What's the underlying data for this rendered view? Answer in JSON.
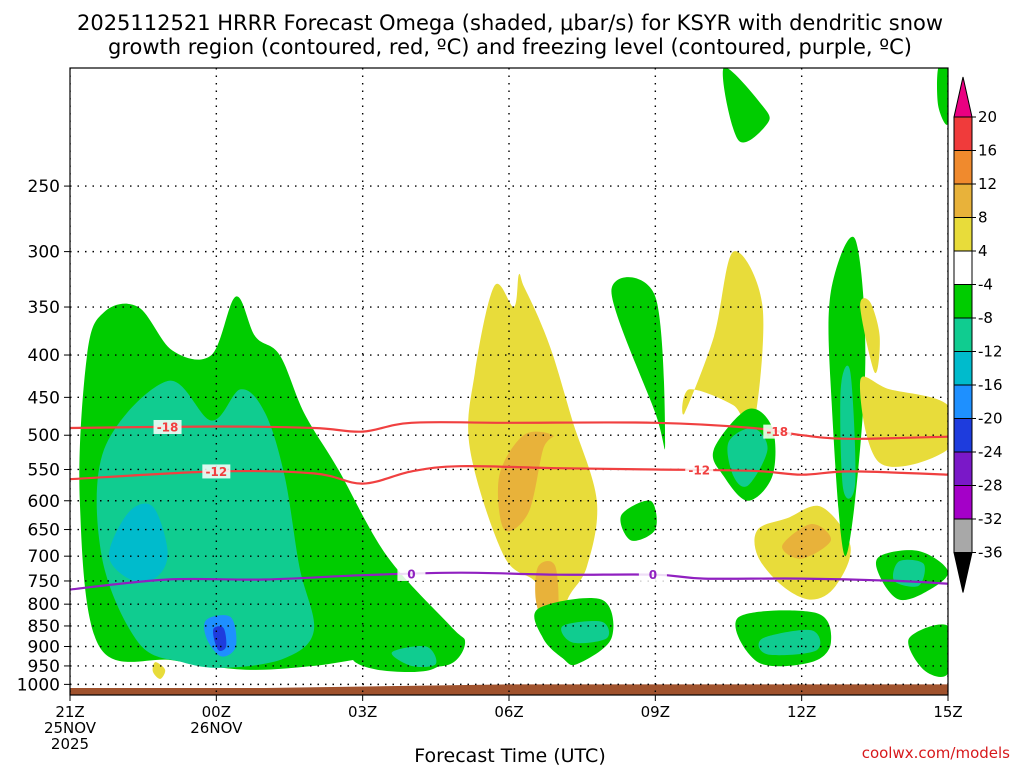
{
  "title_lines": [
    "2025112521 HRRR Forecast Omega (shaded, μbar/s) for KSYR with dendritic snow",
    "growth region (contoured, red, ºC) and freezing level (contoured, purple, ºC)"
  ],
  "credit": "coolwx.com/models",
  "chart_data": {
    "type": "heatmap",
    "title": "2025112521 HRRR Forecast Omega (shaded, μbar/s) for KSYR with dendritic snow growth region (contoured, red, ºC) and freezing level (contoured, purple, ºC)",
    "xlabel": "Forecast Time (UTC)",
    "ylabel": "",
    "x_range_hours": [
      0,
      18
    ],
    "y_range_hPa": [
      1030,
      180
    ],
    "y_scale": "log-pressure",
    "grid": true,
    "x_ticks": [
      {
        "hour": 0,
        "lines": [
          "21Z",
          "25NOV",
          "2025"
        ]
      },
      {
        "hour": 3,
        "lines": [
          "00Z",
          "26NOV"
        ]
      },
      {
        "hour": 6,
        "lines": [
          "03Z"
        ]
      },
      {
        "hour": 9,
        "lines": [
          "06Z"
        ]
      },
      {
        "hour": 12,
        "lines": [
          "09Z"
        ]
      },
      {
        "hour": 15,
        "lines": [
          "12Z"
        ]
      },
      {
        "hour": 18,
        "lines": [
          "15Z"
        ]
      }
    ],
    "y_ticks": [
      "250",
      "300",
      "350",
      "400",
      "450",
      "500",
      "550",
      "600",
      "650",
      "700",
      "750",
      "800",
      "850",
      "900",
      "950",
      "1000"
    ],
    "colorbar": {
      "labels": [
        "20",
        "16",
        "12",
        "8",
        "4",
        "-4",
        "-8",
        "-12",
        "-16",
        "-20",
        "-24",
        "-28",
        "-32",
        "-36"
      ],
      "colors": [
        "#ea0081",
        "#f03b3b",
        "#f08a2d",
        "#e8b23a",
        "#e8dc3a",
        "#ffffff",
        "#00cc00",
        "#10cc90",
        "#00bbcc",
        "#1e90ff",
        "#1e3cdd",
        "#7a18c8",
        "#a400c8",
        "#a8a8a8",
        "#000000"
      ]
    },
    "omega_regions": [
      {
        "level": -4,
        "color": "#00cc00",
        "x": [
          2.1,
          1.4,
          0.7,
          0.35,
          0.2,
          0.6,
          2.1,
          3.6,
          5.0,
          6.2,
          7.0,
          7.8,
          8.1,
          7.8,
          6.5,
          5.5,
          4.8,
          4.3,
          3.8,
          3.4,
          2.9
        ],
        "p": [
          395,
          350,
          355,
          400,
          600,
          900,
          935,
          960,
          950,
          930,
          950,
          945,
          890,
          850,
          700,
          550,
          470,
          400,
          380,
          340,
          400
        ]
      },
      {
        "level": -8,
        "color": "#10cc90",
        "x": [
          2.0,
          0.7,
          0.65,
          1.4,
          2.3,
          3.2,
          4.4,
          5.0,
          4.7,
          4.4,
          4.0,
          3.5,
          2.9
        ],
        "p": [
          430,
          520,
          700,
          890,
          940,
          955,
          930,
          860,
          720,
          560,
          470,
          440,
          480
        ]
      },
      {
        "level": -12,
        "color": "#00bbcc",
        "x": [
          1.2,
          1.7,
          2.0,
          1.8,
          1.3,
          0.8
        ],
        "p": [
          620,
          610,
          690,
          740,
          750,
          700
        ]
      },
      {
        "level": -16,
        "color": "#1e90ff",
        "x": [
          2.8,
          3.3,
          3.4,
          3.1,
          2.8
        ],
        "p": [
          835,
          830,
          900,
          925,
          880
        ]
      },
      {
        "level": -20,
        "color": "#1e3cdd",
        "x": [
          2.95,
          3.15,
          3.2,
          3.05,
          2.95
        ],
        "p": [
          855,
          855,
          900,
          910,
          880
        ]
      },
      {
        "level": -4,
        "color": "#00cc00",
        "x": [
          5.8,
          6.7,
          7.4,
          7.9,
          7.4,
          6.3
        ],
        "p": [
          925,
          870,
          875,
          900,
          960,
          960
        ]
      },
      {
        "level": -8,
        "color": "#10cc90",
        "x": [
          6.6,
          7.3,
          7.5,
          7.0
        ],
        "p": [
          915,
          900,
          945,
          950
        ]
      },
      {
        "level": 4,
        "color": "#e8dc3a",
        "x": [
          8.7,
          8.3,
          8.2,
          8.9,
          9.6,
          9.9,
          10.2,
          10.6,
          10.8,
          10.3,
          9.9,
          9.6,
          9.3,
          9.2,
          9.1
        ],
        "p": [
          330,
          420,
          520,
          700,
          760,
          900,
          790,
          720,
          600,
          480,
          400,
          360,
          330,
          320,
          350
        ]
      },
      {
        "level": 8,
        "color": "#e8b23a",
        "x": [
          9.3,
          8.8,
          8.9,
          9.4,
          9.7,
          9.9
        ],
        "p": [
          500,
          560,
          650,
          620,
          520,
          500
        ]
      },
      {
        "level": 8,
        "color": "#e8b23a",
        "x": [
          9.6,
          9.95,
          10.0,
          9.75,
          9.55
        ],
        "p": [
          720,
          720,
          830,
          850,
          790
        ]
      },
      {
        "level": -4,
        "color": "#00cc00",
        "x": [
          9.6,
          10.9,
          11.1,
          10.4,
          10.1,
          9.7
        ],
        "p": [
          810,
          790,
          880,
          945,
          930,
          880
        ]
      },
      {
        "level": -8,
        "color": "#10cc90",
        "x": [
          10.1,
          10.9,
          11.0,
          10.3
        ],
        "p": [
          850,
          840,
          880,
          890
        ]
      },
      {
        "level": -4,
        "color": "#00cc00",
        "x": [
          11.1,
          12.0,
          12.2,
          12.0
        ],
        "p": [
          335,
          340,
          510,
          470
        ]
      },
      {
        "level": -4,
        "color": "#00cc00",
        "x": [
          11.3,
          11.9,
          12.0,
          11.5
        ],
        "p": [
          625,
          600,
          650,
          670
        ]
      },
      {
        "level": 4,
        "color": "#e8dc3a",
        "x": [
          12.6,
          13.2,
          13.6,
          14.2,
          14.0,
          13.6,
          12.7
        ],
        "p": [
          470,
          380,
          300,
          350,
          490,
          460,
          440
        ]
      },
      {
        "level": -4,
        "color": "#00cc00",
        "x": [
          13.2,
          13.9,
          14.4,
          14.4,
          13.9,
          13.4
        ],
        "p": [
          520,
          465,
          490,
          560,
          600,
          560
        ]
      },
      {
        "level": -8,
        "color": "#10cc90",
        "x": [
          13.5,
          14.0,
          14.3,
          13.9,
          13.6
        ],
        "p": [
          510,
          490,
          520,
          575,
          560
        ]
      },
      {
        "level": 4,
        "color": "#e8dc3a",
        "x": [
          14.1,
          14.7,
          15.4,
          16.0,
          15.7,
          15.2,
          14.6,
          14.1
        ],
        "p": [
          650,
          630,
          610,
          680,
          760,
          790,
          760,
          700
        ]
      },
      {
        "level": 8,
        "color": "#e8b23a",
        "x": [
          14.6,
          15.2,
          15.6,
          15.0
        ],
        "p": [
          680,
          640,
          670,
          705
        ]
      },
      {
        "level": -4,
        "color": "#00cc00",
        "x": [
          13.7,
          15.3,
          15.6,
          15.2,
          14.1
        ],
        "p": [
          830,
          820,
          890,
          940,
          940
        ]
      },
      {
        "level": -8,
        "color": "#10cc90",
        "x": [
          14.2,
          15.2,
          15.3,
          14.3
        ],
        "p": [
          880,
          860,
          910,
          920
        ]
      },
      {
        "level": -4,
        "color": "#00cc00",
        "x": [
          15.6,
          16.1,
          16.3,
          15.9,
          15.6
        ],
        "p": [
          335,
          290,
          420,
          700,
          440
        ]
      },
      {
        "level": -8,
        "color": "#10cc90",
        "x": [
          15.8,
          16.0,
          16.1,
          15.85
        ],
        "p": [
          440,
          420,
          570,
          580
        ]
      },
      {
        "level": 4,
        "color": "#e8dc3a",
        "x": [
          16.2,
          16.4,
          16.6,
          16.5
        ],
        "p": [
          350,
          345,
          380,
          420
        ]
      },
      {
        "level": 4,
        "color": "#e8dc3a",
        "x": [
          16.2,
          16.8,
          18.0,
          18.0,
          16.6
        ],
        "p": [
          430,
          440,
          460,
          520,
          540
        ]
      },
      {
        "level": -4,
        "color": "#00cc00",
        "x": [
          16.6,
          17.4,
          18.0,
          17.6,
          17.0,
          16.6
        ],
        "p": [
          700,
          690,
          730,
          770,
          790,
          740
        ]
      },
      {
        "level": -8,
        "color": "#10cc90",
        "x": [
          17.0,
          17.5,
          17.4,
          16.9
        ],
        "p": [
          710,
          715,
          760,
          750
        ]
      },
      {
        "level": -4,
        "color": "#00cc00",
        "x": [
          17.2,
          18.0,
          18.0,
          17.5
        ],
        "p": [
          880,
          850,
          970,
          960
        ]
      },
      {
        "level": -4,
        "color": "#00cc00",
        "x": [
          13.4,
          14.2,
          14.3,
          13.7
        ],
        "p": [
          180,
          200,
          210,
          220
        ]
      },
      {
        "level": -4,
        "color": "#00cc00",
        "x": [
          17.8,
          18.0,
          18.0,
          17.8
        ],
        "p": [
          180,
          180,
          210,
          200
        ]
      },
      {
        "level": 4,
        "color": "#e8dc3a",
        "x": [
          1.75,
          1.95,
          1.85,
          1.7
        ],
        "p": [
          940,
          960,
          985,
          965
        ]
      }
    ],
    "isotherms": [
      {
        "name": "-18",
        "color": "#f04040",
        "label_x_hours": [
          2.0,
          14.5
        ],
        "x": [
          0,
          3,
          5,
          6,
          7,
          9,
          12,
          14,
          15,
          16,
          18
        ],
        "p": [
          490,
          488,
          490,
          495,
          483,
          483,
          483,
          490,
          500,
          505,
          502
        ]
      },
      {
        "name": "-12",
        "color": "#f04040",
        "label_x_hours": [
          3.0,
          12.9
        ],
        "x": [
          0,
          3,
          5,
          6,
          7,
          8,
          10,
          12,
          14,
          15,
          16,
          18
        ],
        "p": [
          565,
          553,
          556,
          572,
          553,
          545,
          548,
          550,
          552,
          558,
          553,
          558
        ]
      },
      {
        "name": "0",
        "color": "#9020c0",
        "label_x_hours": [
          7.0,
          11.95
        ],
        "x": [
          0,
          2,
          4,
          6,
          8,
          10,
          12,
          13,
          15,
          17,
          18
        ],
        "p": [
          768,
          747,
          747,
          738,
          733,
          737,
          737,
          745,
          745,
          750,
          756
        ]
      }
    ],
    "ground": {
      "color": "#a0522d",
      "p_top_left": 1010,
      "p_top_right": 1000
    }
  }
}
